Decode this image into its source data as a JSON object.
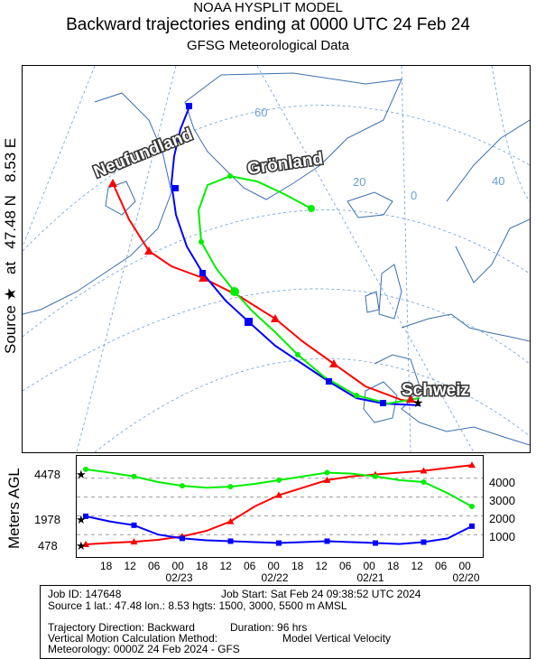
{
  "header": {
    "model": "NOAA HYSPLIT MODEL",
    "title": "Backward trajectories ending at 0000 UTC 24 Feb 24",
    "data_source": "GFSG Meteorological Data"
  },
  "source_label": {
    "source": "Source",
    "star": "★",
    "at": "at",
    "lat": "47.48 N",
    "lon": "8.53 E"
  },
  "map": {
    "grid_labels": [
      "60",
      "20",
      "0",
      "40",
      "20",
      "0"
    ],
    "places": [
      "Neufundland",
      "Grönland",
      "Schweiz"
    ],
    "colors": {
      "land": "#ffffff",
      "coast": "#3a6fb0",
      "grid": "#5a8fd0",
      "red": "#ff0000",
      "blue": "#0000ff",
      "green": "#00ee00"
    }
  },
  "altitude_plot": {
    "ylabel": "Meters AGL",
    "left_ticks": [
      "4478",
      "1978",
      "478"
    ],
    "right_ticks": [
      "4000",
      "3000",
      "2000",
      "1000"
    ],
    "x_ticks": [
      "18",
      "12",
      "06",
      "00",
      "18",
      "12",
      "06",
      "00",
      "18",
      "12",
      "06",
      "00",
      "18",
      "12",
      "06",
      "00"
    ],
    "dates": [
      "02/23",
      "02/22",
      "02/21",
      "02/20"
    ]
  },
  "chart_data": {
    "type": "line",
    "title": "",
    "xlabel": "",
    "ylabel": "Meters AGL",
    "x": [
      0,
      -6,
      -12,
      -18,
      -24,
      -30,
      -36,
      -42,
      -48,
      -54,
      -60,
      -66,
      -72,
      -78,
      -84,
      -90,
      -96
    ],
    "series": [
      {
        "name": "",
        "color": "#ff0000",
        "start_height_m": 478,
        "values": [
          478,
          560,
          620,
          720,
          900,
          1200,
          1700,
          2500,
          3100,
          3500,
          3900,
          4100,
          4200,
          4300,
          4400,
          4550,
          4700
        ]
      },
      {
        "name": "",
        "color": "#0000ff",
        "start_height_m": 1978,
        "values": [
          1978,
          1700,
          1500,
          1000,
          800,
          700,
          650,
          600,
          550,
          600,
          650,
          600,
          550,
          500,
          600,
          800,
          1450
        ]
      },
      {
        "name": "",
        "color": "#00ee00",
        "start_height_m": 4478,
        "values": [
          4478,
          4300,
          4100,
          3800,
          3600,
          3500,
          3550,
          3700,
          3900,
          4100,
          4300,
          4250,
          4100,
          3900,
          3800,
          3200,
          2500
        ]
      }
    ],
    "ylim": [
      0,
      5000
    ]
  },
  "footer": {
    "job_id": "Job ID: 147648",
    "job_start": "Job Start: Sat Feb 24 09:38:52 UTC 2024",
    "source1": "Source 1 lat.: 47.48  lon.: 8.53  hgts: 1500, 3000, 5500 m AMSL",
    "direction": "Trajectory Direction: Backward",
    "duration": "Duration: 96 hrs",
    "vertical": "Vertical Motion Calculation Method:",
    "vertical_value": "Model Vertical Velocity",
    "meteorology": "Meteorology: 0000Z 24 Feb 2024 - GFS"
  }
}
